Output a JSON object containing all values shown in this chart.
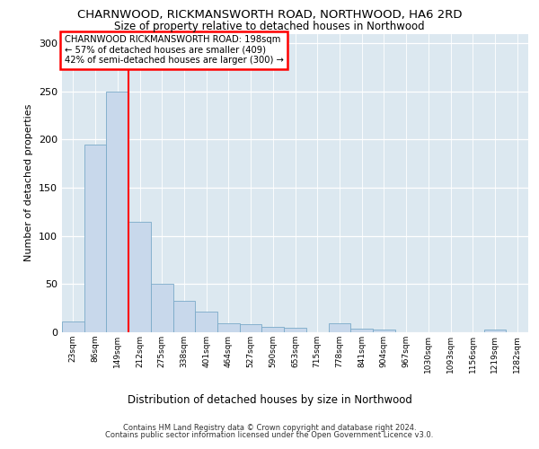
{
  "title1": "CHARNWOOD, RICKMANSWORTH ROAD, NORTHWOOD, HA6 2RD",
  "title2": "Size of property relative to detached houses in Northwood",
  "xlabel": "Distribution of detached houses by size in Northwood",
  "ylabel": "Number of detached properties",
  "categories": [
    "23sqm",
    "86sqm",
    "149sqm",
    "212sqm",
    "275sqm",
    "338sqm",
    "401sqm",
    "464sqm",
    "527sqm",
    "590sqm",
    "653sqm",
    "715sqm",
    "778sqm",
    "841sqm",
    "904sqm",
    "967sqm",
    "1030sqm",
    "1093sqm",
    "1156sqm",
    "1219sqm",
    "1282sqm"
  ],
  "values": [
    11,
    195,
    250,
    115,
    50,
    33,
    21,
    9,
    8,
    6,
    5,
    0,
    9,
    4,
    3,
    0,
    0,
    0,
    0,
    3,
    0
  ],
  "bar_color": "#c8d8eb",
  "bar_edge_color": "#7aaac8",
  "vline_color": "red",
  "vline_x": 2.5,
  "annotation_text": "CHARNWOOD RICKMANSWORTH ROAD: 198sqm\n← 57% of detached houses are smaller (409)\n42% of semi-detached houses are larger (300) →",
  "annotation_box_edge": "red",
  "ylim": [
    0,
    310
  ],
  "yticks": [
    0,
    50,
    100,
    150,
    200,
    250,
    300
  ],
  "footer1": "Contains HM Land Registry data © Crown copyright and database right 2024.",
  "footer2": "Contains public sector information licensed under the Open Government Licence v3.0.",
  "fig_bg_color": "#ffffff",
  "plot_bg_color": "#dce8f0"
}
